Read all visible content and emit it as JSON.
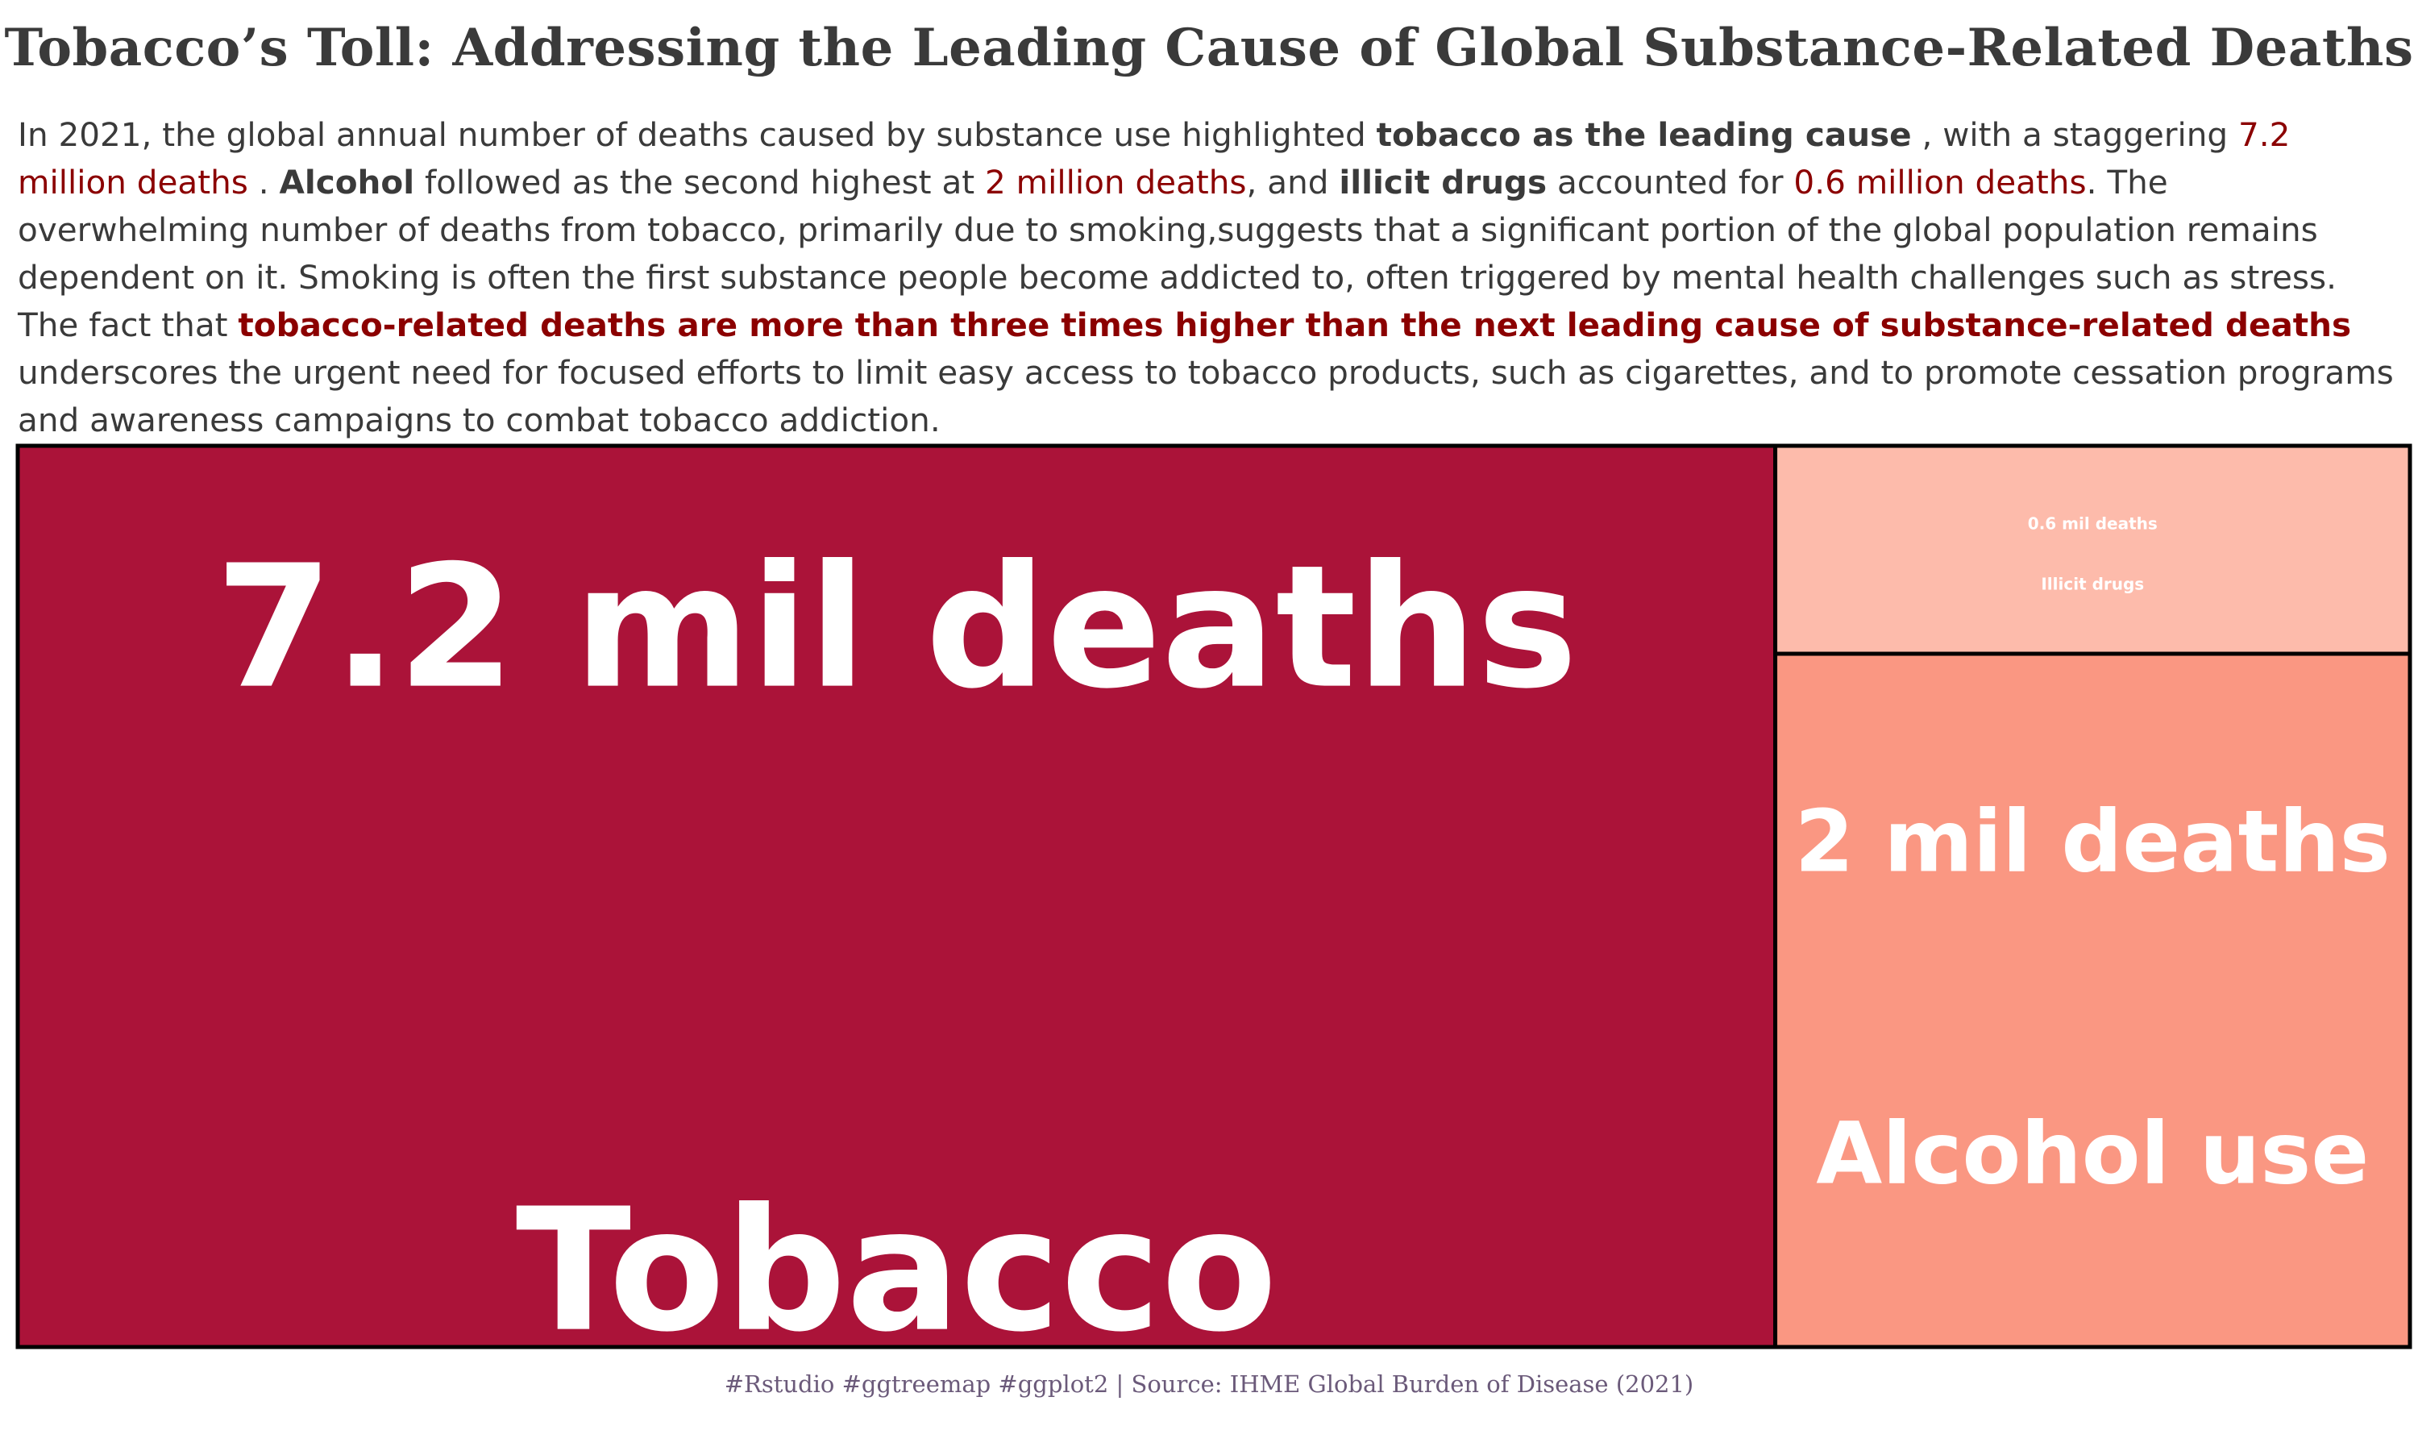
{
  "title": "Tobacco’s Toll: Addressing the Leading Cause of Global Substance-Related Deaths",
  "description": {
    "p1": "In 2021, the global annual number of deaths caused by substance use highlighted ",
    "b1": "tobacco as the leading cause",
    "p2": " , with a staggering ",
    "h1": "7.2 million deaths",
    "p3": " . ",
    "b2": "Alcohol",
    "p4": " followed as the second highest at ",
    "h2": "2 million deaths",
    "p5": ", and ",
    "b3": "illicit drugs",
    "p6": " accounted for ",
    "h3": "0.6 million deaths",
    "p7": ". The overwhelming number of deaths from tobacco, primarily due to smoking,suggests that a significant portion of the global population remains dependent on it. Smoking is often the first substance people become addicted to, often triggered by mental health challenges such as stress. The fact that ",
    "bh1": "tobacco-related deaths are more than three times higher than the next leading cause of substance-related deaths",
    "p8": " underscores the urgent need for focused efforts to limit easy access to tobacco products, such as cigarettes, and to promote cessation programs and awareness campaigns to combat tobacco addiction."
  },
  "chart_data": {
    "type": "treemap",
    "unit": "mil deaths",
    "items": [
      {
        "name": "Tobacco",
        "value": 7.2,
        "value_label": "7.2 mil deaths",
        "color": "#ab1339"
      },
      {
        "name": "Alcohol use",
        "value": 2,
        "value_label": "2 mil deaths",
        "color": "#fa9782"
      },
      {
        "name": "Illicit drugs",
        "value": 0.6,
        "value_label": "0.6 mil deaths",
        "color": "#fdbbab"
      }
    ],
    "text_color": "#ffffff",
    "border_color": "#000000"
  },
  "caption": "#Rstudio #ggtreemap #ggplot2 | Source: IHME Global Burden of Disease (2021)"
}
